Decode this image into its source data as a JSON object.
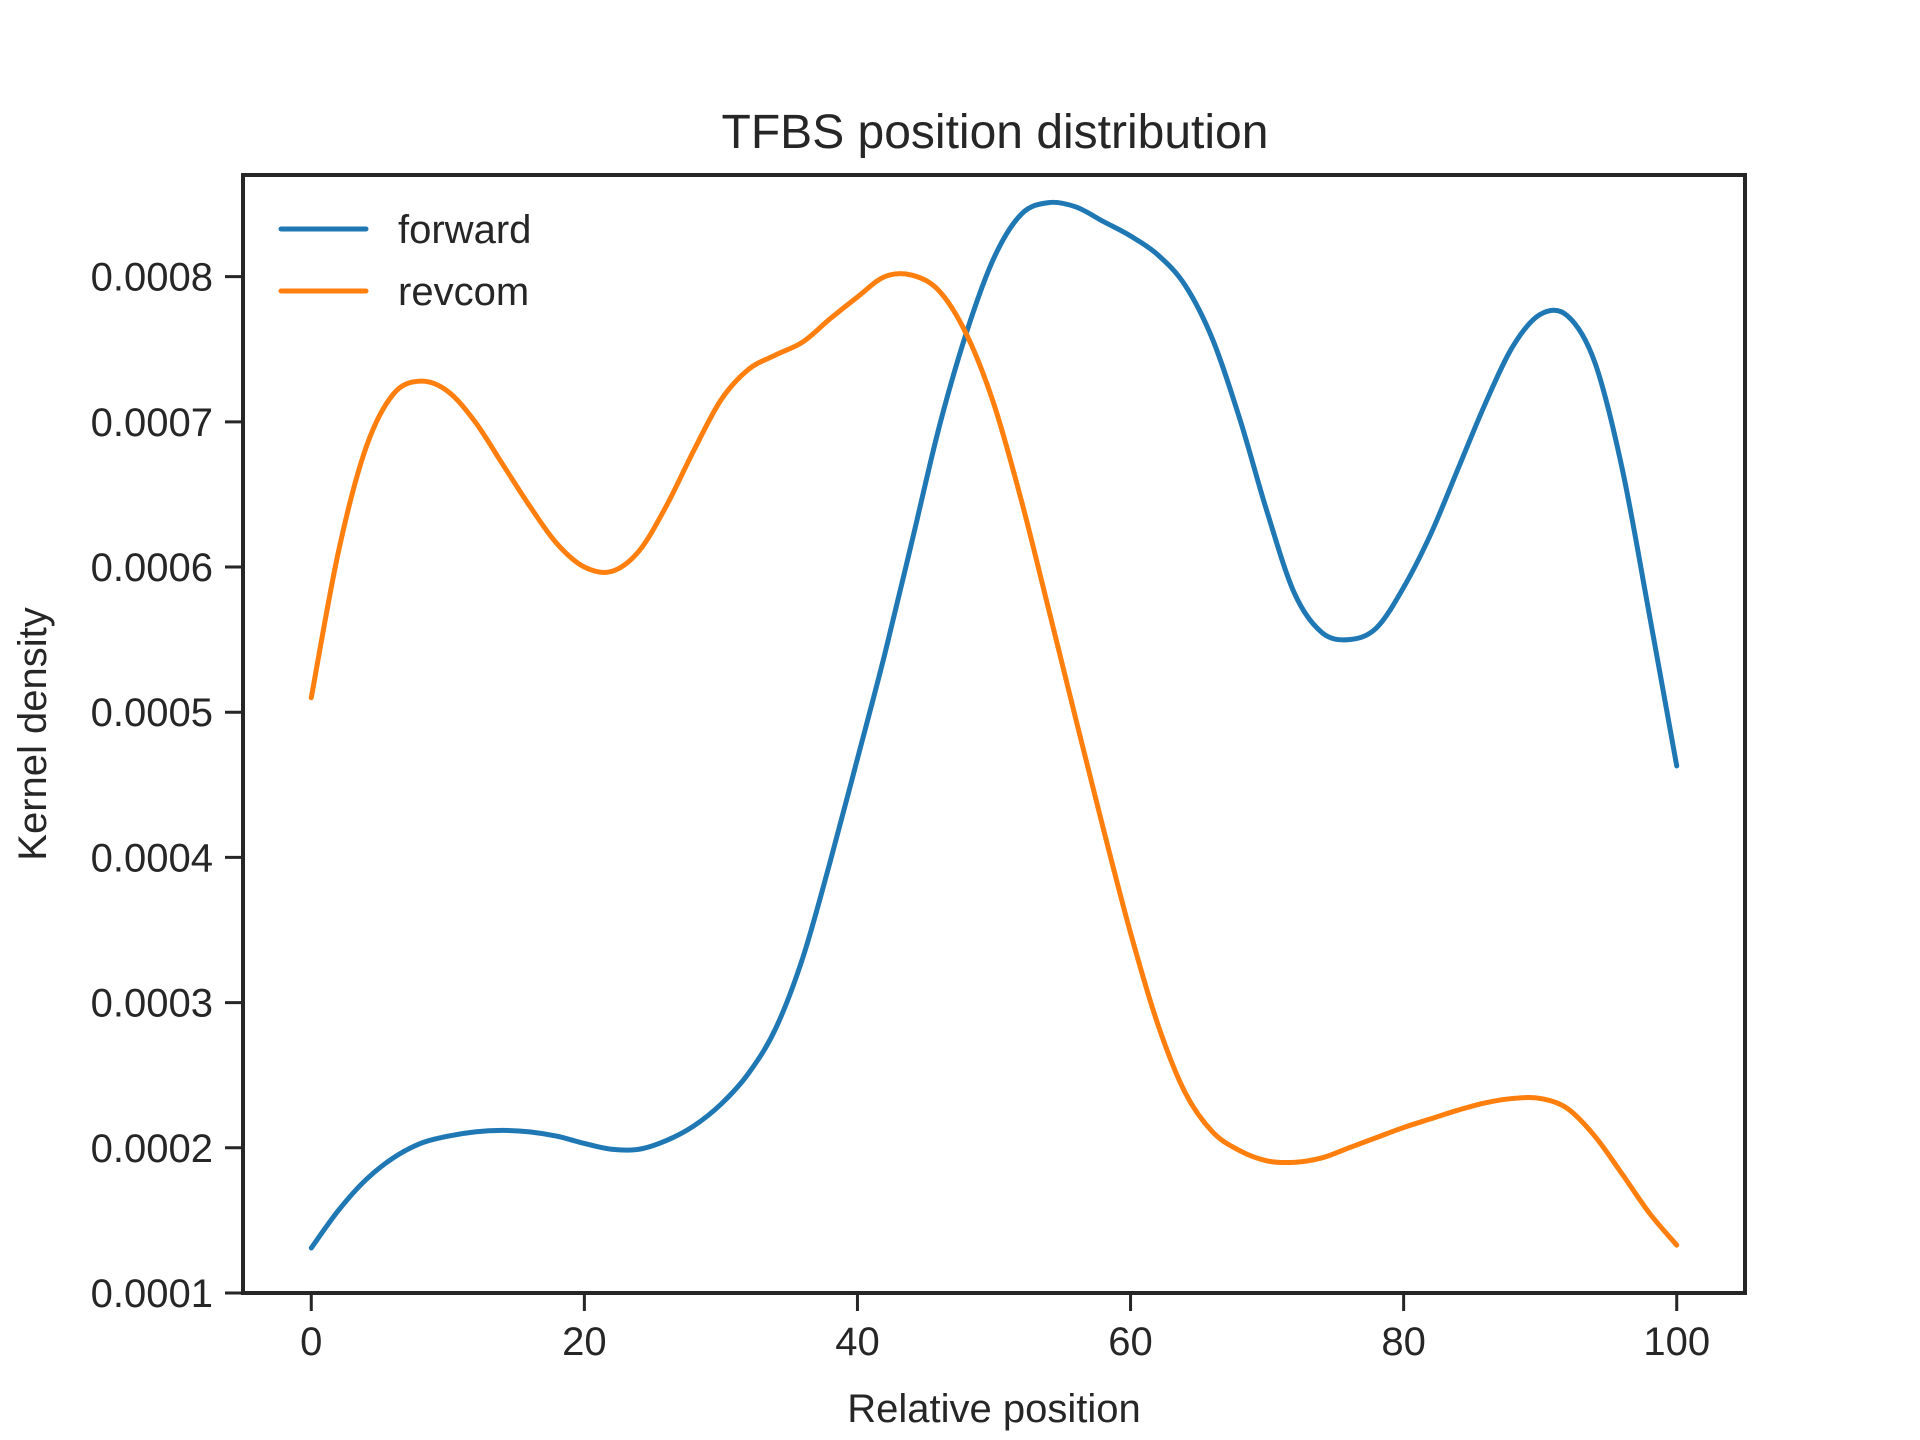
{
  "chart_data": {
    "type": "line",
    "title": "TFBS position distribution",
    "xlabel": "Relative position",
    "ylabel": "Kernel density",
    "xlim": [
      -5,
      105
    ],
    "ylim": [
      0.0001,
      0.00087
    ],
    "xticks": [
      0,
      20,
      40,
      60,
      80,
      100
    ],
    "xtick_labels": [
      "0",
      "20",
      "40",
      "60",
      "80",
      "100"
    ],
    "yticks": [
      0.0001,
      0.0002,
      0.0003,
      0.0004,
      0.0005,
      0.0006,
      0.0007,
      0.0008
    ],
    "ytick_labels": [
      "0.0001",
      "0.0002",
      "0.0003",
      "0.0004",
      "0.0005",
      "0.0006",
      "0.0007",
      "0.0008"
    ],
    "grid": false,
    "legend_position": "top-left",
    "series": [
      {
        "name": "forward",
        "color": "#1f77b4",
        "x": [
          0,
          2,
          4,
          6,
          8,
          10,
          12,
          14,
          16,
          18,
          20,
          22,
          24,
          26,
          28,
          30,
          32,
          34,
          36,
          38,
          40,
          42,
          44,
          46,
          48,
          50,
          52,
          54,
          56,
          58,
          60,
          62,
          64,
          66,
          68,
          70,
          72,
          74,
          76,
          78,
          80,
          82,
          84,
          86,
          88,
          90,
          92,
          94,
          96,
          98,
          100
        ],
        "y": [
          0.000131,
          0.000157,
          0.000178,
          0.000193,
          0.000203,
          0.000208,
          0.000211,
          0.000212,
          0.000211,
          0.000208,
          0.000203,
          0.000199,
          0.000199,
          0.000205,
          0.000215,
          0.00023,
          0.000251,
          0.000282,
          0.000331,
          0.000397,
          0.000468,
          0.00054,
          0.000618,
          0.000697,
          0.000762,
          0.000813,
          0.000843,
          0.000851,
          0.000848,
          0.000838,
          0.000828,
          0.000815,
          0.000794,
          0.000757,
          0.000702,
          0.000638,
          0.000582,
          0.000555,
          0.00055,
          0.000558,
          0.000586,
          0.000623,
          0.000668,
          0.000713,
          0.000752,
          0.000774,
          0.000773,
          0.000741,
          0.000668,
          0.000567,
          0.000463
        ]
      },
      {
        "name": "revcom",
        "color": "#ff7f0e",
        "x": [
          0,
          2,
          4,
          6,
          8,
          10,
          12,
          14,
          16,
          18,
          20,
          22,
          24,
          26,
          28,
          30,
          32,
          34,
          36,
          38,
          40,
          42,
          44,
          46,
          48,
          50,
          52,
          54,
          56,
          58,
          60,
          62,
          64,
          66,
          68,
          70,
          72,
          74,
          76,
          78,
          80,
          82,
          84,
          86,
          88,
          90,
          92,
          94,
          96,
          98,
          100
        ],
        "y": [
          0.00051,
          0.000611,
          0.000682,
          0.000719,
          0.000728,
          0.000721,
          0.0007,
          0.000671,
          0.000642,
          0.000616,
          0.0006,
          0.000597,
          0.000611,
          0.000642,
          0.00068,
          0.000715,
          0.000736,
          0.000746,
          0.000755,
          0.000771,
          0.000786,
          0.0008,
          0.000801,
          0.00079,
          0.00076,
          0.000712,
          0.000646,
          0.000571,
          0.000495,
          0.00042,
          0.000348,
          0.000285,
          0.000238,
          0.000211,
          0.000198,
          0.000191,
          0.00019,
          0.000193,
          0.0002,
          0.000207,
          0.000214,
          0.00022,
          0.000226,
          0.000231,
          0.000234,
          0.000234,
          0.000227,
          0.000208,
          0.000182,
          0.000155,
          0.000133
        ]
      }
    ]
  }
}
